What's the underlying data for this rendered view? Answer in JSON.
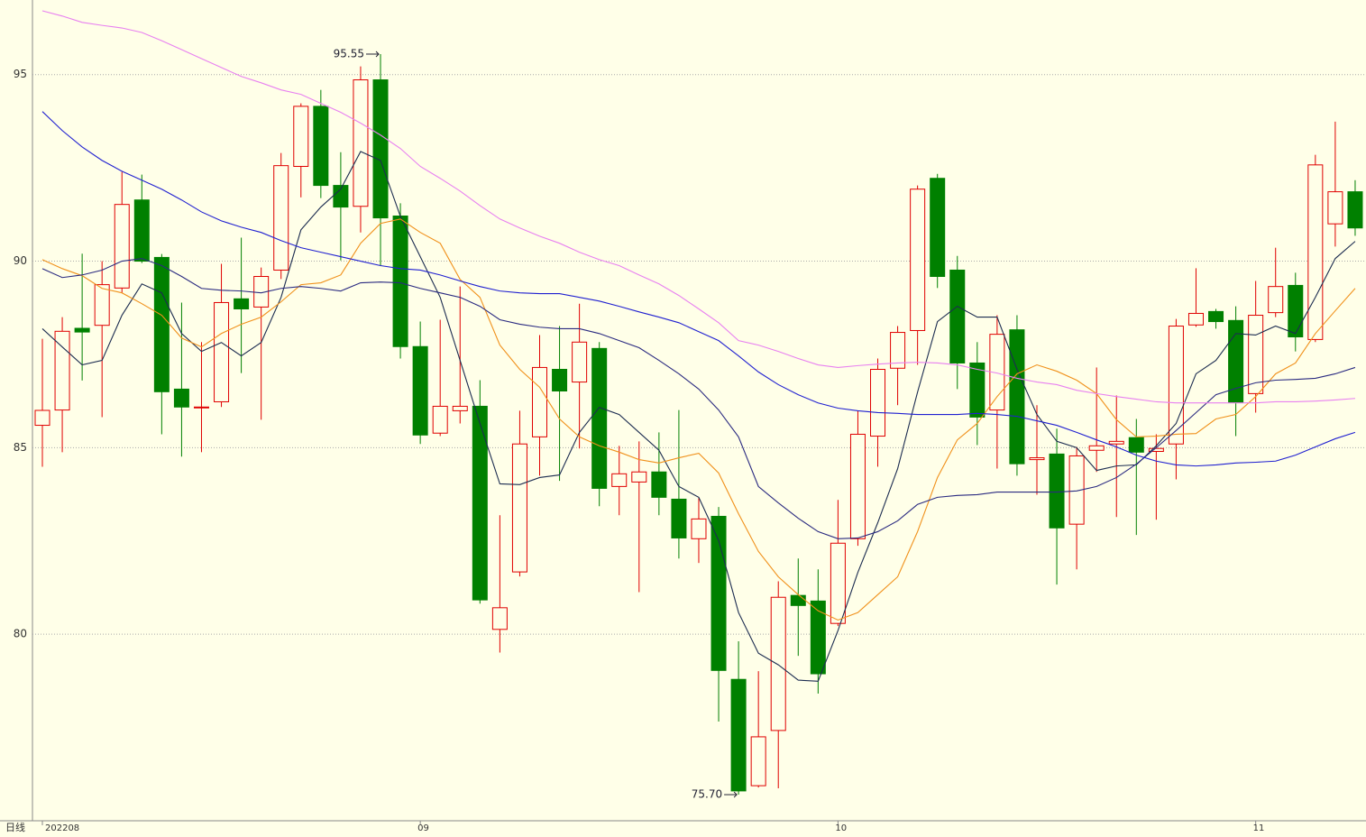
{
  "chart_data": {
    "type": "candlestick",
    "period_label": "日线",
    "categories": [
      "202208",
      null,
      null,
      null,
      null,
      null,
      null,
      null,
      null,
      null,
      null,
      null,
      null,
      null,
      null,
      null,
      null,
      null,
      null,
      "09",
      null,
      null,
      null,
      null,
      null,
      null,
      null,
      null,
      null,
      null,
      null,
      null,
      null,
      null,
      null,
      null,
      null,
      null,
      null,
      null,
      "10",
      null,
      null,
      null,
      null,
      null,
      null,
      null,
      null,
      null,
      null,
      null,
      null,
      null,
      null,
      null,
      null,
      null,
      null,
      null,
      null,
      "11",
      null,
      null,
      null,
      null,
      null
    ],
    "open": [
      85.6,
      86.01,
      88.2,
      88.28,
      89.28,
      91.64,
      90.1,
      86.57,
      86.08,
      86.23,
      88.99,
      88.77,
      89.76,
      92.54,
      94.15,
      92.03,
      91.47,
      94.86,
      91.21,
      87.71,
      85.39,
      85.99,
      86.11,
      80.13,
      81.67,
      85.29,
      87.1,
      86.76,
      87.66,
      83.96,
      84.08,
      84.35,
      83.62,
      82.56,
      83.16,
      78.79,
      75.94,
      77.42,
      81.04,
      80.89,
      80.29,
      82.56,
      85.31,
      87.13,
      88.14,
      92.22,
      89.76,
      87.27,
      86.01,
      88.16,
      84.68,
      84.83,
      82.95,
      84.93,
      85.1,
      85.27,
      84.9,
      85.1,
      88.29,
      88.65,
      88.41,
      86.45,
      88.62,
      89.35,
      87.9,
      91.0,
      91.86
    ],
    "high": [
      87.92,
      88.5,
      90.2,
      90.0,
      92.39,
      92.32,
      90.19,
      88.89,
      87.83,
      89.93,
      90.63,
      89.83,
      92.9,
      94.23,
      94.59,
      92.92,
      95.22,
      95.55,
      91.55,
      88.38,
      88.43,
      89.32,
      86.81,
      83.19,
      85.99,
      88.02,
      88.26,
      88.86,
      87.83,
      85.05,
      85.17,
      85.41,
      86.01,
      83.65,
      83.41,
      79.81,
      79.01,
      81.42,
      82.03,
      81.74,
      83.6,
      85.99,
      87.39,
      88.26,
      92.03,
      92.34,
      90.14,
      87.83,
      88.55,
      88.55,
      86.14,
      85.51,
      85.02,
      87.15,
      86.4,
      85.77,
      85.36,
      88.45,
      89.81,
      88.72,
      88.79,
      89.47,
      90.36,
      89.69,
      92.85,
      93.74,
      92.17
    ],
    "low": [
      84.49,
      84.88,
      86.8,
      85.82,
      89.15,
      89.95,
      85.36,
      84.76,
      84.88,
      86.09,
      87.0,
      85.75,
      89.52,
      91.71,
      91.69,
      90.02,
      90.77,
      89.88,
      87.39,
      85.1,
      85.31,
      85.65,
      80.82,
      79.51,
      81.55,
      84.25,
      84.11,
      84.98,
      83.43,
      83.19,
      81.13,
      83.19,
      82.03,
      81.91,
      77.66,
      75.7,
      75.89,
      75.87,
      79.42,
      78.41,
      80.22,
      82.37,
      84.49,
      86.14,
      87.22,
      89.28,
      86.57,
      85.07,
      84.44,
      84.25,
      83.74,
      81.33,
      81.74,
      84.35,
      83.14,
      82.66,
      83.07,
      84.15,
      88.24,
      88.19,
      85.31,
      85.94,
      88.5,
      87.58,
      87.83,
      90.39,
      90.68
    ],
    "close": [
      86.0,
      88.12,
      88.1,
      89.37,
      91.52,
      90.0,
      86.5,
      86.09,
      86.09,
      88.89,
      88.72,
      89.59,
      92.56,
      94.15,
      92.03,
      91.45,
      94.86,
      91.16,
      87.71,
      85.34,
      86.11,
      86.11,
      80.92,
      80.71,
      85.1,
      87.15,
      86.52,
      87.83,
      83.91,
      84.3,
      84.35,
      83.67,
      82.58,
      83.09,
      79.03,
      75.8,
      77.25,
      80.99,
      80.77,
      78.94,
      82.44,
      85.36,
      87.1,
      88.09,
      91.93,
      89.59,
      87.27,
      85.82,
      88.04,
      84.57,
      84.73,
      82.85,
      84.78,
      85.05,
      85.17,
      84.88,
      84.98,
      88.26,
      88.6,
      88.38,
      86.21,
      88.55,
      89.32,
      87.97,
      92.58,
      91.86,
      90.89
    ],
    "up_color": "#e00000",
    "down_color": "#008000",
    "lines": [
      {
        "color": "#1c2c50",
        "values": [
          88.19,
          87.7,
          87.22,
          87.34,
          88.55,
          89.39,
          89.15,
          88.06,
          87.58,
          87.82,
          87.46,
          87.82,
          89.03,
          90.84,
          91.45,
          91.93,
          92.94,
          92.7,
          91.2,
          90.12,
          89.03,
          87.34,
          85.65,
          84.03,
          84.01,
          84.2,
          84.27,
          85.41,
          86.08,
          85.89,
          85.41,
          84.93,
          83.96,
          83.67,
          82.51,
          80.58,
          79.49,
          79.18,
          78.77,
          78.74,
          80.1,
          81.66,
          82.99,
          84.44,
          86.49,
          88.38,
          88.79,
          88.5,
          88.5,
          87.1,
          85.89,
          85.17,
          85.0,
          84.39,
          84.51,
          84.54,
          85.05,
          85.65,
          86.98,
          87.34,
          88.06,
          88.02,
          88.26,
          88.06,
          89.03,
          90.07,
          90.53
        ]
      },
      {
        "color": "#f0901a",
        "values": [
          90.04,
          89.8,
          89.61,
          89.27,
          89.15,
          88.86,
          88.55,
          87.94,
          87.7,
          88.06,
          88.31,
          88.5,
          88.91,
          89.37,
          89.42,
          89.63,
          90.48,
          91.01,
          91.13,
          90.77,
          90.48,
          89.51,
          89.03,
          87.75,
          87.1,
          86.62,
          85.77,
          85.29,
          85.05,
          84.88,
          84.68,
          84.59,
          84.73,
          84.85,
          84.32,
          83.23,
          82.22,
          81.54,
          81.06,
          80.63,
          80.38,
          80.58,
          81.06,
          81.54,
          82.75,
          84.2,
          85.21,
          85.65,
          86.37,
          86.98,
          87.22,
          87.05,
          86.81,
          86.45,
          85.75,
          85.29,
          85.31,
          85.36,
          85.38,
          85.77,
          85.89,
          86.37,
          86.98,
          87.27,
          88.06,
          88.67,
          89.27
        ]
      },
      {
        "color": "#2a2a80",
        "values": [
          89.8,
          89.56,
          89.63,
          89.76,
          90.0,
          90.07,
          89.88,
          89.59,
          89.27,
          89.22,
          89.2,
          89.15,
          89.27,
          89.32,
          89.27,
          89.2,
          89.42,
          89.44,
          89.42,
          89.27,
          89.15,
          89.03,
          88.79,
          88.43,
          88.31,
          88.23,
          88.19,
          88.19,
          88.06,
          87.87,
          87.68,
          87.34,
          86.98,
          86.57,
          86.01,
          85.29,
          83.96,
          83.52,
          83.11,
          82.75,
          82.56,
          82.58,
          82.75,
          83.04,
          83.48,
          83.67,
          83.72,
          83.74,
          83.81,
          83.81,
          83.81,
          83.81,
          83.84,
          83.96,
          84.2,
          84.56,
          85.0,
          85.46,
          85.94,
          86.42,
          86.59,
          86.74,
          86.81,
          86.83,
          86.86,
          86.98,
          87.15
        ]
      },
      {
        "color": "#2020d0",
        "values": [
          94.01,
          93.5,
          93.06,
          92.7,
          92.41,
          92.17,
          91.93,
          91.64,
          91.32,
          91.08,
          90.91,
          90.77,
          90.55,
          90.36,
          90.24,
          90.12,
          90.0,
          89.88,
          89.8,
          89.76,
          89.63,
          89.47,
          89.32,
          89.2,
          89.15,
          89.13,
          89.13,
          89.03,
          88.93,
          88.79,
          88.64,
          88.5,
          88.35,
          88.11,
          87.87,
          87.46,
          87.03,
          86.69,
          86.42,
          86.2,
          86.06,
          85.99,
          85.94,
          85.92,
          85.89,
          85.89,
          85.89,
          85.92,
          85.89,
          85.84,
          85.72,
          85.6,
          85.41,
          85.21,
          85.02,
          84.8,
          84.64,
          84.54,
          84.51,
          84.54,
          84.59,
          84.61,
          84.64,
          84.8,
          85.02,
          85.24,
          85.41
        ]
      },
      {
        "color": "#e880f0",
        "values": [
          96.71,
          96.57,
          96.4,
          96.32,
          96.25,
          96.13,
          95.91,
          95.67,
          95.43,
          95.19,
          94.95,
          94.78,
          94.59,
          94.47,
          94.23,
          93.99,
          93.7,
          93.38,
          93.02,
          92.54,
          92.22,
          91.88,
          91.49,
          91.13,
          90.89,
          90.67,
          90.48,
          90.24,
          90.04,
          89.88,
          89.63,
          89.39,
          89.08,
          88.72,
          88.35,
          87.87,
          87.75,
          87.58,
          87.39,
          87.22,
          87.15,
          87.2,
          87.24,
          87.27,
          87.29,
          87.27,
          87.22,
          87.1,
          87.0,
          86.86,
          86.76,
          86.69,
          86.54,
          86.45,
          86.37,
          86.3,
          86.23,
          86.2,
          86.2,
          86.2,
          86.2,
          86.2,
          86.23,
          86.23,
          86.25,
          86.28,
          86.32
        ]
      }
    ],
    "annotations": [
      {
        "value": 95.55,
        "label": "95.55",
        "kind": "high"
      },
      {
        "value": 75.7,
        "label": "75.70",
        "kind": "low"
      }
    ],
    "ylim": [
      75,
      97
    ],
    "yticks": [
      80,
      85,
      90,
      95
    ],
    "grid": true
  }
}
